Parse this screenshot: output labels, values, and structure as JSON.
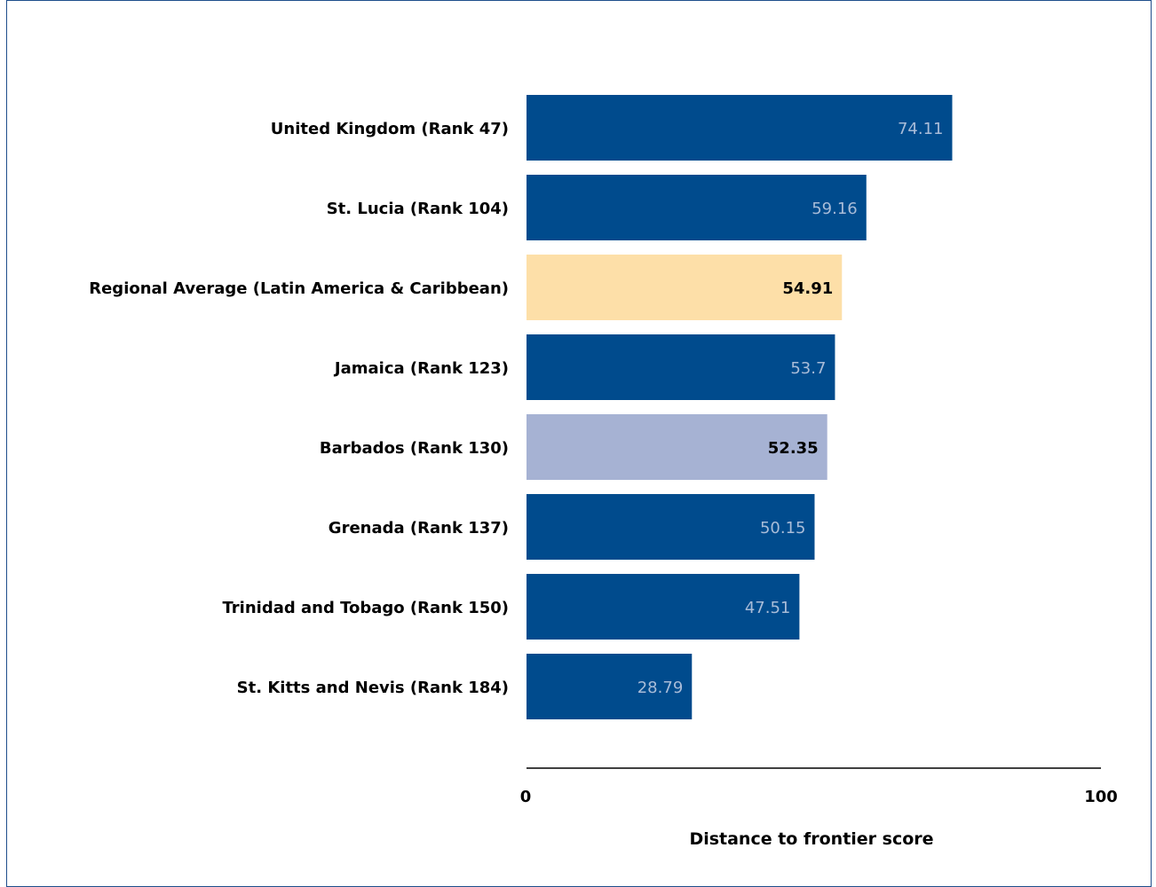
{
  "chart_data": {
    "type": "bar",
    "orientation": "horizontal",
    "categories": [
      "United Kingdom (Rank 47)",
      "St. Lucia (Rank 104)",
      "Regional Average (Latin America & Caribbean)",
      "Jamaica (Rank 123)",
      "Barbados (Rank 130)",
      "Grenada (Rank 137)",
      "Trinidad and Tobago (Rank 150)",
      "St. Kitts and Nevis (Rank 184)"
    ],
    "values": [
      74.11,
      59.16,
      54.91,
      53.7,
      52.35,
      50.15,
      47.51,
      28.79
    ],
    "value_labels": [
      "74.11",
      "59.16",
      "54.91",
      "53.7",
      "52.35",
      "50.15",
      "47.51",
      "28.79"
    ],
    "bar_colors": [
      "#004B8D",
      "#004B8D",
      "#FDDFA8",
      "#004B8D",
      "#A6B2D3",
      "#004B8D",
      "#004B8D",
      "#004B8D"
    ],
    "label_colors": [
      "#A9BCD8",
      "#A9BCD8",
      "#000000",
      "#A9BCD8",
      "#000000",
      "#A9BCD8",
      "#A9BCD8",
      "#A9BCD8"
    ],
    "xlim": [
      0,
      100
    ],
    "xticks": [
      "0",
      "100"
    ],
    "xlabel": "Distance to frontier score",
    "grid": false,
    "legend": "none"
  }
}
